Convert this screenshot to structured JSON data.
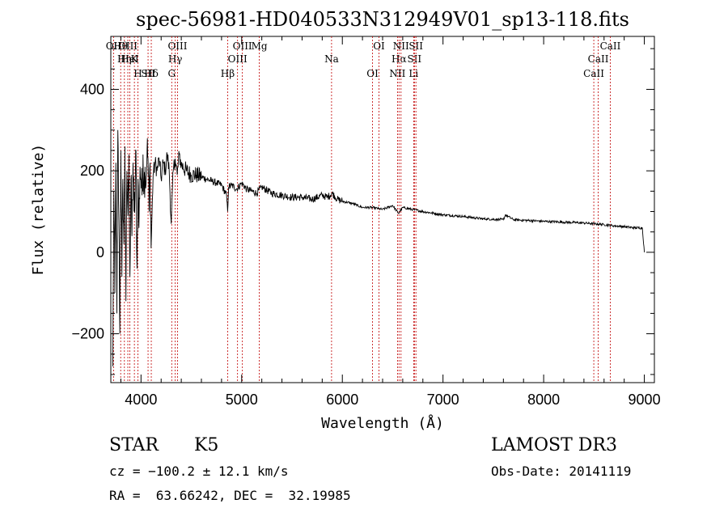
{
  "chart_data": {
    "type": "line",
    "title": "spec-56981-HD040533N312949V01_sp13-118.fits",
    "xlabel": "Wavelength (Å)",
    "ylabel": "Flux (relative)",
    "xlim": [
      3700,
      9100
    ],
    "ylim": [
      -320,
      530
    ],
    "x_ticks": [
      4000,
      5000,
      6000,
      7000,
      8000,
      9000
    ],
    "y_ticks": [
      -200,
      0,
      200,
      400
    ],
    "grid": false,
    "line_color": "#000000",
    "marker_color": "#c00000",
    "spectrum": {
      "name": "flux",
      "x": [
        3720,
        3730,
        3740,
        3750,
        3760,
        3770,
        3780,
        3790,
        3800,
        3810,
        3820,
        3830,
        3840,
        3850,
        3860,
        3870,
        3880,
        3890,
        3900,
        3910,
        3920,
        3930,
        3940,
        3950,
        3960,
        3970,
        3980,
        3990,
        4000,
        4010,
        4020,
        4030,
        4040,
        4050,
        4060,
        4070,
        4080,
        4090,
        4100,
        4120,
        4140,
        4160,
        4180,
        4200,
        4220,
        4240,
        4260,
        4280,
        4300,
        4320,
        4340,
        4360,
        4380,
        4400,
        4450,
        4500,
        4550,
        4600,
        4650,
        4700,
        4750,
        4800,
        4850,
        4860,
        4870,
        4900,
        4950,
        5000,
        5050,
        5100,
        5150,
        5200,
        5300,
        5400,
        5500,
        5600,
        5700,
        5800,
        5850,
        5900,
        5950,
        6000,
        6100,
        6200,
        6300,
        6400,
        6500,
        6560,
        6570,
        6600,
        6700,
        6800,
        7000,
        7200,
        7400,
        7600,
        7620,
        7700,
        8000,
        8200,
        8400,
        8500,
        8600,
        8700,
        8800,
        8900,
        8980,
        9000
      ],
      "y": [
        -280,
        150,
        -100,
        220,
        -150,
        300,
        80,
        -200,
        250,
        -60,
        180,
        20,
        260,
        -120,
        200,
        90,
        240,
        -60,
        180,
        40,
        220,
        100,
        130,
        250,
        -40,
        180,
        60,
        210,
        180,
        140,
        240,
        160,
        210,
        170,
        250,
        230,
        100,
        220,
        10,
        190,
        220,
        200,
        230,
        180,
        220,
        200,
        240,
        200,
        70,
        200,
        230,
        190,
        240,
        215,
        200,
        190,
        190,
        185,
        180,
        175,
        170,
        165,
        140,
        100,
        160,
        165,
        155,
        170,
        155,
        150,
        145,
        160,
        145,
        140,
        135,
        135,
        130,
        140,
        135,
        145,
        130,
        125,
        120,
        110,
        110,
        105,
        115,
        95,
        100,
        110,
        105,
        100,
        92,
        88,
        82,
        80,
        92,
        80,
        76,
        74,
        72,
        70,
        68,
        65,
        63,
        60,
        60,
        0
      ]
    },
    "lines": [
      {
        "label": "Hθ",
        "x": 3798
      },
      {
        "label": "K",
        "x": 3934
      },
      {
        "label": "Hδ",
        "x": 4102
      },
      {
        "label": "OII",
        "x": 3727
      },
      {
        "label": "HeI",
        "x": 3889
      },
      {
        "label": "SII",
        "x": 4070
      },
      {
        "label": "OIII",
        "x": 3869
      },
      {
        "label": "Hη",
        "x": 3835
      },
      {
        "label": "H",
        "x": 3969
      },
      {
        "label": "OIII",
        "x": 4363
      },
      {
        "label": "Hγ",
        "x": 4340
      },
      {
        "label": "G",
        "x": 4305
      },
      {
        "label": "OIII",
        "x": 5007
      },
      {
        "label": "OIII",
        "x": 4959
      },
      {
        "label": "Hβ",
        "x": 4861
      },
      {
        "label": "Mg",
        "x": 5175
      },
      {
        "label": "Na",
        "x": 5893
      },
      {
        "label": "OI",
        "x": 6300
      },
      {
        "label": "OI",
        "x": 6364
      },
      {
        "label": "Hα",
        "x": 6563
      },
      {
        "label": "NII",
        "x": 6548
      },
      {
        "label": "NII",
        "x": 6583
      },
      {
        "label": "SII",
        "x": 6716
      },
      {
        "label": "Li",
        "x": 6708
      },
      {
        "label": "SII",
        "x": 6731
      },
      {
        "label": "CaII",
        "x": 8542
      },
      {
        "label": "CaII",
        "x": 8498
      },
      {
        "label": "CaII",
        "x": 8662
      }
    ]
  },
  "info": {
    "object_class": "STAR",
    "subclass": "K5",
    "survey": "LAMOST DR3",
    "cz": "cz = −100.2 ± 12.1 km/s",
    "obs_date": "Obs-Date: 20141119",
    "radec": "RA =  63.66242, DEC =  32.19985"
  }
}
